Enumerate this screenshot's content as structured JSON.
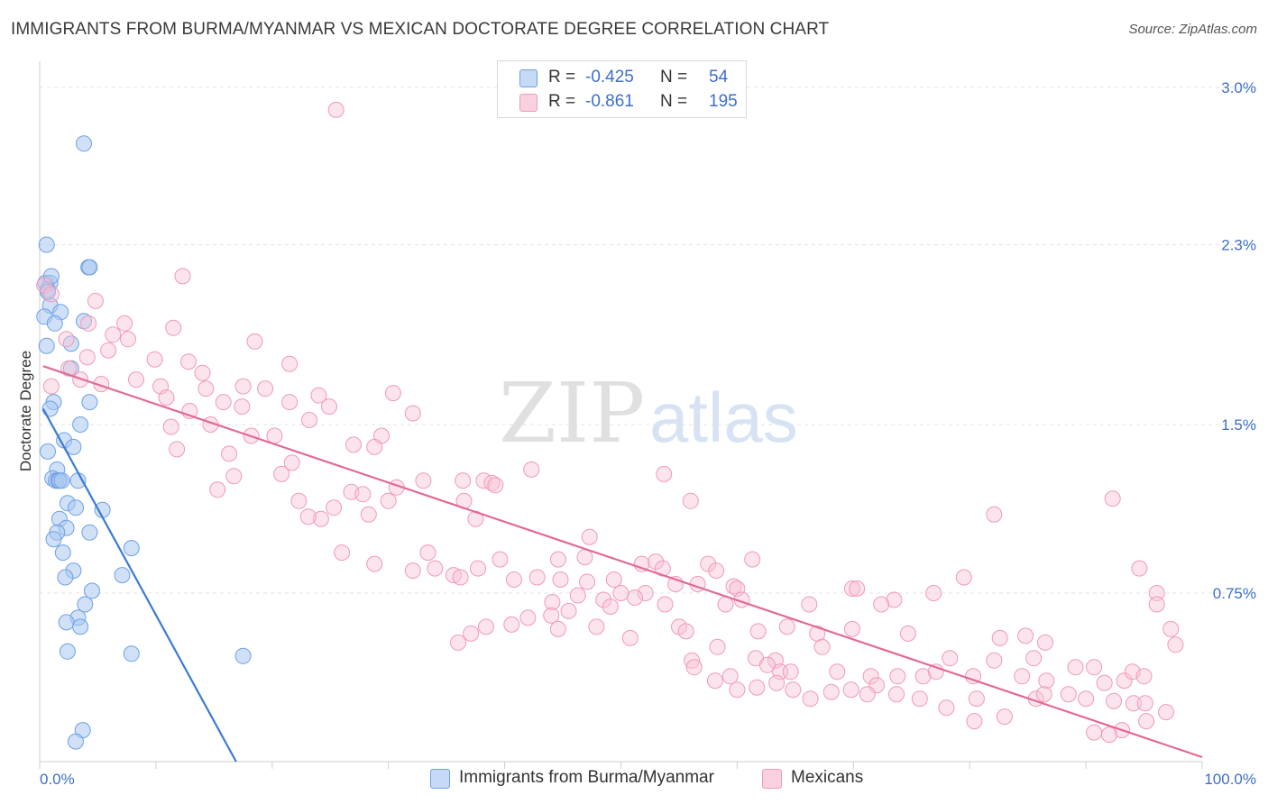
{
  "title": "IMMIGRANTS FROM BURMA/MYANMAR VS MEXICAN DOCTORATE DEGREE CORRELATION CHART",
  "source": "Source: ZipAtlas.com",
  "watermark": {
    "zip": "ZIP",
    "atlas": "atlas"
  },
  "legend": {
    "r_label": "R =",
    "n_label": "N =",
    "rows": [
      {
        "r": "-0.425",
        "n": "54",
        "color": "#6fa0e6"
      },
      {
        "r": "-0.861",
        "n": "195",
        "color": "#f09bb6"
      }
    ]
  },
  "bottom_legend": [
    "Immigrants from Burma/Myanmar",
    "Mexicans"
  ],
  "chart_data": {
    "type": "scatter",
    "xlabel": "",
    "ylabel": "Doctorate Degree",
    "xlim": [
      0,
      100
    ],
    "ylim": [
      0,
      3.0
    ],
    "x_tick_labels": [
      "0.0%",
      "100.0%"
    ],
    "y_ticks": [
      0.75,
      1.5,
      2.3,
      3.0
    ],
    "y_tick_labels": [
      "0.75%",
      "1.5%",
      "2.3%",
      "3.0%"
    ],
    "grid": "horizontal dashed",
    "legend_position": "top-center",
    "series": [
      {
        "name": "Immigrants from Burma/Myanmar",
        "color": "#6fa0e6",
        "trend": {
          "x": [
            0.3,
            16.9
          ],
          "y": [
            1.57,
            0.0
          ]
        },
        "points": [
          [
            3.8,
            2.75
          ],
          [
            0.6,
            2.3
          ],
          [
            4.2,
            2.2
          ],
          [
            4.3,
            2.2
          ],
          [
            0.5,
            2.13
          ],
          [
            0.9,
            2.13
          ],
          [
            0.7,
            2.1
          ],
          [
            0.9,
            2.03
          ],
          [
            0.4,
            1.98
          ],
          [
            3.8,
            1.96
          ],
          [
            0.6,
            1.85
          ],
          [
            2.7,
            1.86
          ],
          [
            2.7,
            1.75
          ],
          [
            1.2,
            1.6
          ],
          [
            0.9,
            1.57
          ],
          [
            4.3,
            1.6
          ],
          [
            3.5,
            1.5
          ],
          [
            2.1,
            1.43
          ],
          [
            2.9,
            1.4
          ],
          [
            0.7,
            1.38
          ],
          [
            1.5,
            1.3
          ],
          [
            1.1,
            1.26
          ],
          [
            1.4,
            1.25
          ],
          [
            1.6,
            1.25
          ],
          [
            3.3,
            1.25
          ],
          [
            1.7,
            1.25
          ],
          [
            1.9,
            1.25
          ],
          [
            2.4,
            1.15
          ],
          [
            3.1,
            1.13
          ],
          [
            5.4,
            1.12
          ],
          [
            1.7,
            1.08
          ],
          [
            2.3,
            1.04
          ],
          [
            1.5,
            1.02
          ],
          [
            4.3,
            1.02
          ],
          [
            1.2,
            0.99
          ],
          [
            7.9,
            0.95
          ],
          [
            2.0,
            0.93
          ],
          [
            2.9,
            0.85
          ],
          [
            2.2,
            0.82
          ],
          [
            7.1,
            0.83
          ],
          [
            4.5,
            0.76
          ],
          [
            3.9,
            0.7
          ],
          [
            3.3,
            0.64
          ],
          [
            2.3,
            0.62
          ],
          [
            3.5,
            0.6
          ],
          [
            2.4,
            0.49
          ],
          [
            7.9,
            0.48
          ],
          [
            17.5,
            0.47
          ],
          [
            3.7,
            0.14
          ],
          [
            3.1,
            0.09
          ],
          [
            1.0,
            2.16
          ],
          [
            0.7,
            2.09
          ],
          [
            1.8,
            2.0
          ],
          [
            1.3,
            1.95
          ]
        ]
      },
      {
        "name": "Mexicans",
        "color": "#f09bb6",
        "trend": {
          "x": [
            0.3,
            100.0
          ],
          "y": [
            1.76,
            0.02
          ]
        },
        "points": [
          [
            25.5,
            2.9
          ],
          [
            12.3,
            2.16
          ],
          [
            0.4,
            2.12
          ],
          [
            1.0,
            2.08
          ],
          [
            4.8,
            2.05
          ],
          [
            7.3,
            1.95
          ],
          [
            4.2,
            1.95
          ],
          [
            11.5,
            1.93
          ],
          [
            6.3,
            1.9
          ],
          [
            7.6,
            1.88
          ],
          [
            2.3,
            1.88
          ],
          [
            18.5,
            1.87
          ],
          [
            5.9,
            1.83
          ],
          [
            4.1,
            1.8
          ],
          [
            9.9,
            1.79
          ],
          [
            12.8,
            1.78
          ],
          [
            21.5,
            1.77
          ],
          [
            2.5,
            1.75
          ],
          [
            14.0,
            1.73
          ],
          [
            8.3,
            1.7
          ],
          [
            3.5,
            1.7
          ],
          [
            5.3,
            1.68
          ],
          [
            10.4,
            1.67
          ],
          [
            14.3,
            1.66
          ],
          [
            17.5,
            1.67
          ],
          [
            19.4,
            1.66
          ],
          [
            1.0,
            1.67
          ],
          [
            10.9,
            1.62
          ],
          [
            24.0,
            1.63
          ],
          [
            30.4,
            1.64
          ],
          [
            15.8,
            1.6
          ],
          [
            21.5,
            1.6
          ],
          [
            17.4,
            1.58
          ],
          [
            24.9,
            1.58
          ],
          [
            12.9,
            1.56
          ],
          [
            32.1,
            1.55
          ],
          [
            23.2,
            1.52
          ],
          [
            14.7,
            1.5
          ],
          [
            11.3,
            1.49
          ],
          [
            18.2,
            1.45
          ],
          [
            20.2,
            1.45
          ],
          [
            29.4,
            1.45
          ],
          [
            27.0,
            1.41
          ],
          [
            28.8,
            1.4
          ],
          [
            11.8,
            1.39
          ],
          [
            16.3,
            1.37
          ],
          [
            21.7,
            1.33
          ],
          [
            20.8,
            1.28
          ],
          [
            16.7,
            1.27
          ],
          [
            36.4,
            1.25
          ],
          [
            33.0,
            1.25
          ],
          [
            38.2,
            1.25
          ],
          [
            38.9,
            1.24
          ],
          [
            39.2,
            1.23
          ],
          [
            30.7,
            1.22
          ],
          [
            26.8,
            1.2
          ],
          [
            42.3,
            1.3
          ],
          [
            53.7,
            1.28
          ],
          [
            15.3,
            1.21
          ],
          [
            27.8,
            1.19
          ],
          [
            22.3,
            1.16
          ],
          [
            30.0,
            1.16
          ],
          [
            36.5,
            1.16
          ],
          [
            56.0,
            1.16
          ],
          [
            92.3,
            1.17
          ],
          [
            25.3,
            1.13
          ],
          [
            28.3,
            1.1
          ],
          [
            24.2,
            1.08
          ],
          [
            23.1,
            1.09
          ],
          [
            37.5,
            1.08
          ],
          [
            82.1,
            1.1
          ],
          [
            47.3,
            1.0
          ],
          [
            26.0,
            0.93
          ],
          [
            33.4,
            0.93
          ],
          [
            39.6,
            0.9
          ],
          [
            44.6,
            0.9
          ],
          [
            46.9,
            0.91
          ],
          [
            51.8,
            0.88
          ],
          [
            53.0,
            0.89
          ],
          [
            53.6,
            0.86
          ],
          [
            37.7,
            0.86
          ],
          [
            34.0,
            0.86
          ],
          [
            32.1,
            0.85
          ],
          [
            35.6,
            0.83
          ],
          [
            28.8,
            0.88
          ],
          [
            57.5,
            0.88
          ],
          [
            58.2,
            0.85
          ],
          [
            61.3,
            0.9
          ],
          [
            36.2,
            0.82
          ],
          [
            40.8,
            0.81
          ],
          [
            42.8,
            0.82
          ],
          [
            44.8,
            0.81
          ],
          [
            47.1,
            0.8
          ],
          [
            49.4,
            0.81
          ],
          [
            54.7,
            0.79
          ],
          [
            56.6,
            0.79
          ],
          [
            59.7,
            0.78
          ],
          [
            60.0,
            0.77
          ],
          [
            50.0,
            0.75
          ],
          [
            52.1,
            0.75
          ],
          [
            46.3,
            0.74
          ],
          [
            44.1,
            0.71
          ],
          [
            48.5,
            0.72
          ],
          [
            51.2,
            0.73
          ],
          [
            60.4,
            0.72
          ],
          [
            69.9,
            0.77
          ],
          [
            70.3,
            0.77
          ],
          [
            73.5,
            0.72
          ],
          [
            72.4,
            0.7
          ],
          [
            59.0,
            0.7
          ],
          [
            66.2,
            0.7
          ],
          [
            53.8,
            0.7
          ],
          [
            49.1,
            0.69
          ],
          [
            45.5,
            0.67
          ],
          [
            44.0,
            0.65
          ],
          [
            42.0,
            0.64
          ],
          [
            40.6,
            0.61
          ],
          [
            38.4,
            0.6
          ],
          [
            37.1,
            0.57
          ],
          [
            36.0,
            0.53
          ],
          [
            44.6,
            0.59
          ],
          [
            47.9,
            0.6
          ],
          [
            50.8,
            0.55
          ],
          [
            55.0,
            0.6
          ],
          [
            55.6,
            0.58
          ],
          [
            61.8,
            0.58
          ],
          [
            64.3,
            0.6
          ],
          [
            69.9,
            0.59
          ],
          [
            66.9,
            0.57
          ],
          [
            67.3,
            0.51
          ],
          [
            58.3,
            0.51
          ],
          [
            56.1,
            0.45
          ],
          [
            61.6,
            0.46
          ],
          [
            63.3,
            0.45
          ],
          [
            62.6,
            0.43
          ],
          [
            56.3,
            0.42
          ],
          [
            63.7,
            0.4
          ],
          [
            64.6,
            0.4
          ],
          [
            68.6,
            0.4
          ],
          [
            71.5,
            0.38
          ],
          [
            73.8,
            0.38
          ],
          [
            76.0,
            0.38
          ],
          [
            77.1,
            0.4
          ],
          [
            78.3,
            0.46
          ],
          [
            80.3,
            0.38
          ],
          [
            82.1,
            0.45
          ],
          [
            84.5,
            0.38
          ],
          [
            85.5,
            0.46
          ],
          [
            86.6,
            0.36
          ],
          [
            89.1,
            0.42
          ],
          [
            90.7,
            0.42
          ],
          [
            91.6,
            0.35
          ],
          [
            93.3,
            0.36
          ],
          [
            94.0,
            0.4
          ],
          [
            95.0,
            0.38
          ],
          [
            82.6,
            0.55
          ],
          [
            84.8,
            0.56
          ],
          [
            86.5,
            0.53
          ],
          [
            94.6,
            0.86
          ],
          [
            96.1,
            0.75
          ],
          [
            96.1,
            0.7
          ],
          [
            97.3,
            0.59
          ],
          [
            97.7,
            0.52
          ],
          [
            85.7,
            0.28
          ],
          [
            86.4,
            0.3
          ],
          [
            88.5,
            0.3
          ],
          [
            90.0,
            0.28
          ],
          [
            92.4,
            0.27
          ],
          [
            94.1,
            0.26
          ],
          [
            95.1,
            0.26
          ],
          [
            96.9,
            0.22
          ],
          [
            95.2,
            0.18
          ],
          [
            93.1,
            0.14
          ],
          [
            92.0,
            0.12
          ],
          [
            90.7,
            0.13
          ],
          [
            83.0,
            0.2
          ],
          [
            80.4,
            0.18
          ],
          [
            78.0,
            0.24
          ],
          [
            75.7,
            0.28
          ],
          [
            73.7,
            0.3
          ],
          [
            72.0,
            0.34
          ],
          [
            71.2,
            0.3
          ],
          [
            69.8,
            0.32
          ],
          [
            68.1,
            0.31
          ],
          [
            66.3,
            0.28
          ],
          [
            64.8,
            0.32
          ],
          [
            63.4,
            0.35
          ],
          [
            61.7,
            0.33
          ],
          [
            60.0,
            0.32
          ],
          [
            59.4,
            0.38
          ],
          [
            58.1,
            0.36
          ],
          [
            74.7,
            0.57
          ],
          [
            76.9,
            0.75
          ],
          [
            79.5,
            0.82
          ],
          [
            80.6,
            0.28
          ]
        ]
      }
    ]
  }
}
